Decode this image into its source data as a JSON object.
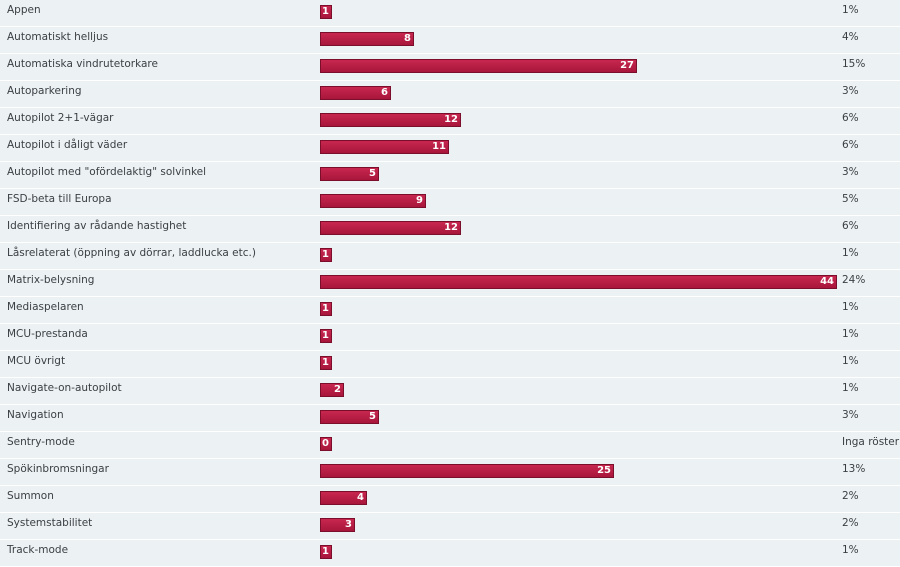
{
  "chart_data": {
    "type": "bar",
    "orientation": "horizontal",
    "max_value": 44,
    "colors": {
      "bar": "#b31d43",
      "bar_border": "#7b0f2b",
      "background": "#ecf1f3"
    },
    "categories": [
      "Appen",
      "Automatiskt helljus",
      "Automatiska vindrutetorkare",
      "Autoparkering",
      "Autopilot 2+1-vägar",
      "Autopilot i dåligt väder",
      "Autopilot med \"ofördelaktig\" solvinkel",
      "FSD-beta till Europa",
      "Identifiering av rådande hastighet",
      "Låsrelaterat (öppning av dörrar, laddlucka etc.)",
      "Matrix-belysning",
      "Mediaspelaren",
      "MCU-prestanda",
      "MCU övrigt",
      "Navigate-on-autopilot",
      "Navigation",
      "Sentry-mode",
      "Spökinbromsningar",
      "Summon",
      "Systemstabilitet",
      "Track-mode"
    ],
    "values": [
      1,
      8,
      27,
      6,
      12,
      11,
      5,
      9,
      12,
      1,
      44,
      1,
      1,
      1,
      2,
      5,
      0,
      25,
      4,
      3,
      1
    ],
    "percent_labels": [
      "1%",
      "4%",
      "15%",
      "3%",
      "6%",
      "6%",
      "3%",
      "5%",
      "6%",
      "1%",
      "24%",
      "1%",
      "1%",
      "1%",
      "1%",
      "3%",
      "Inga röster",
      "13%",
      "2%",
      "2%",
      "1%"
    ]
  }
}
